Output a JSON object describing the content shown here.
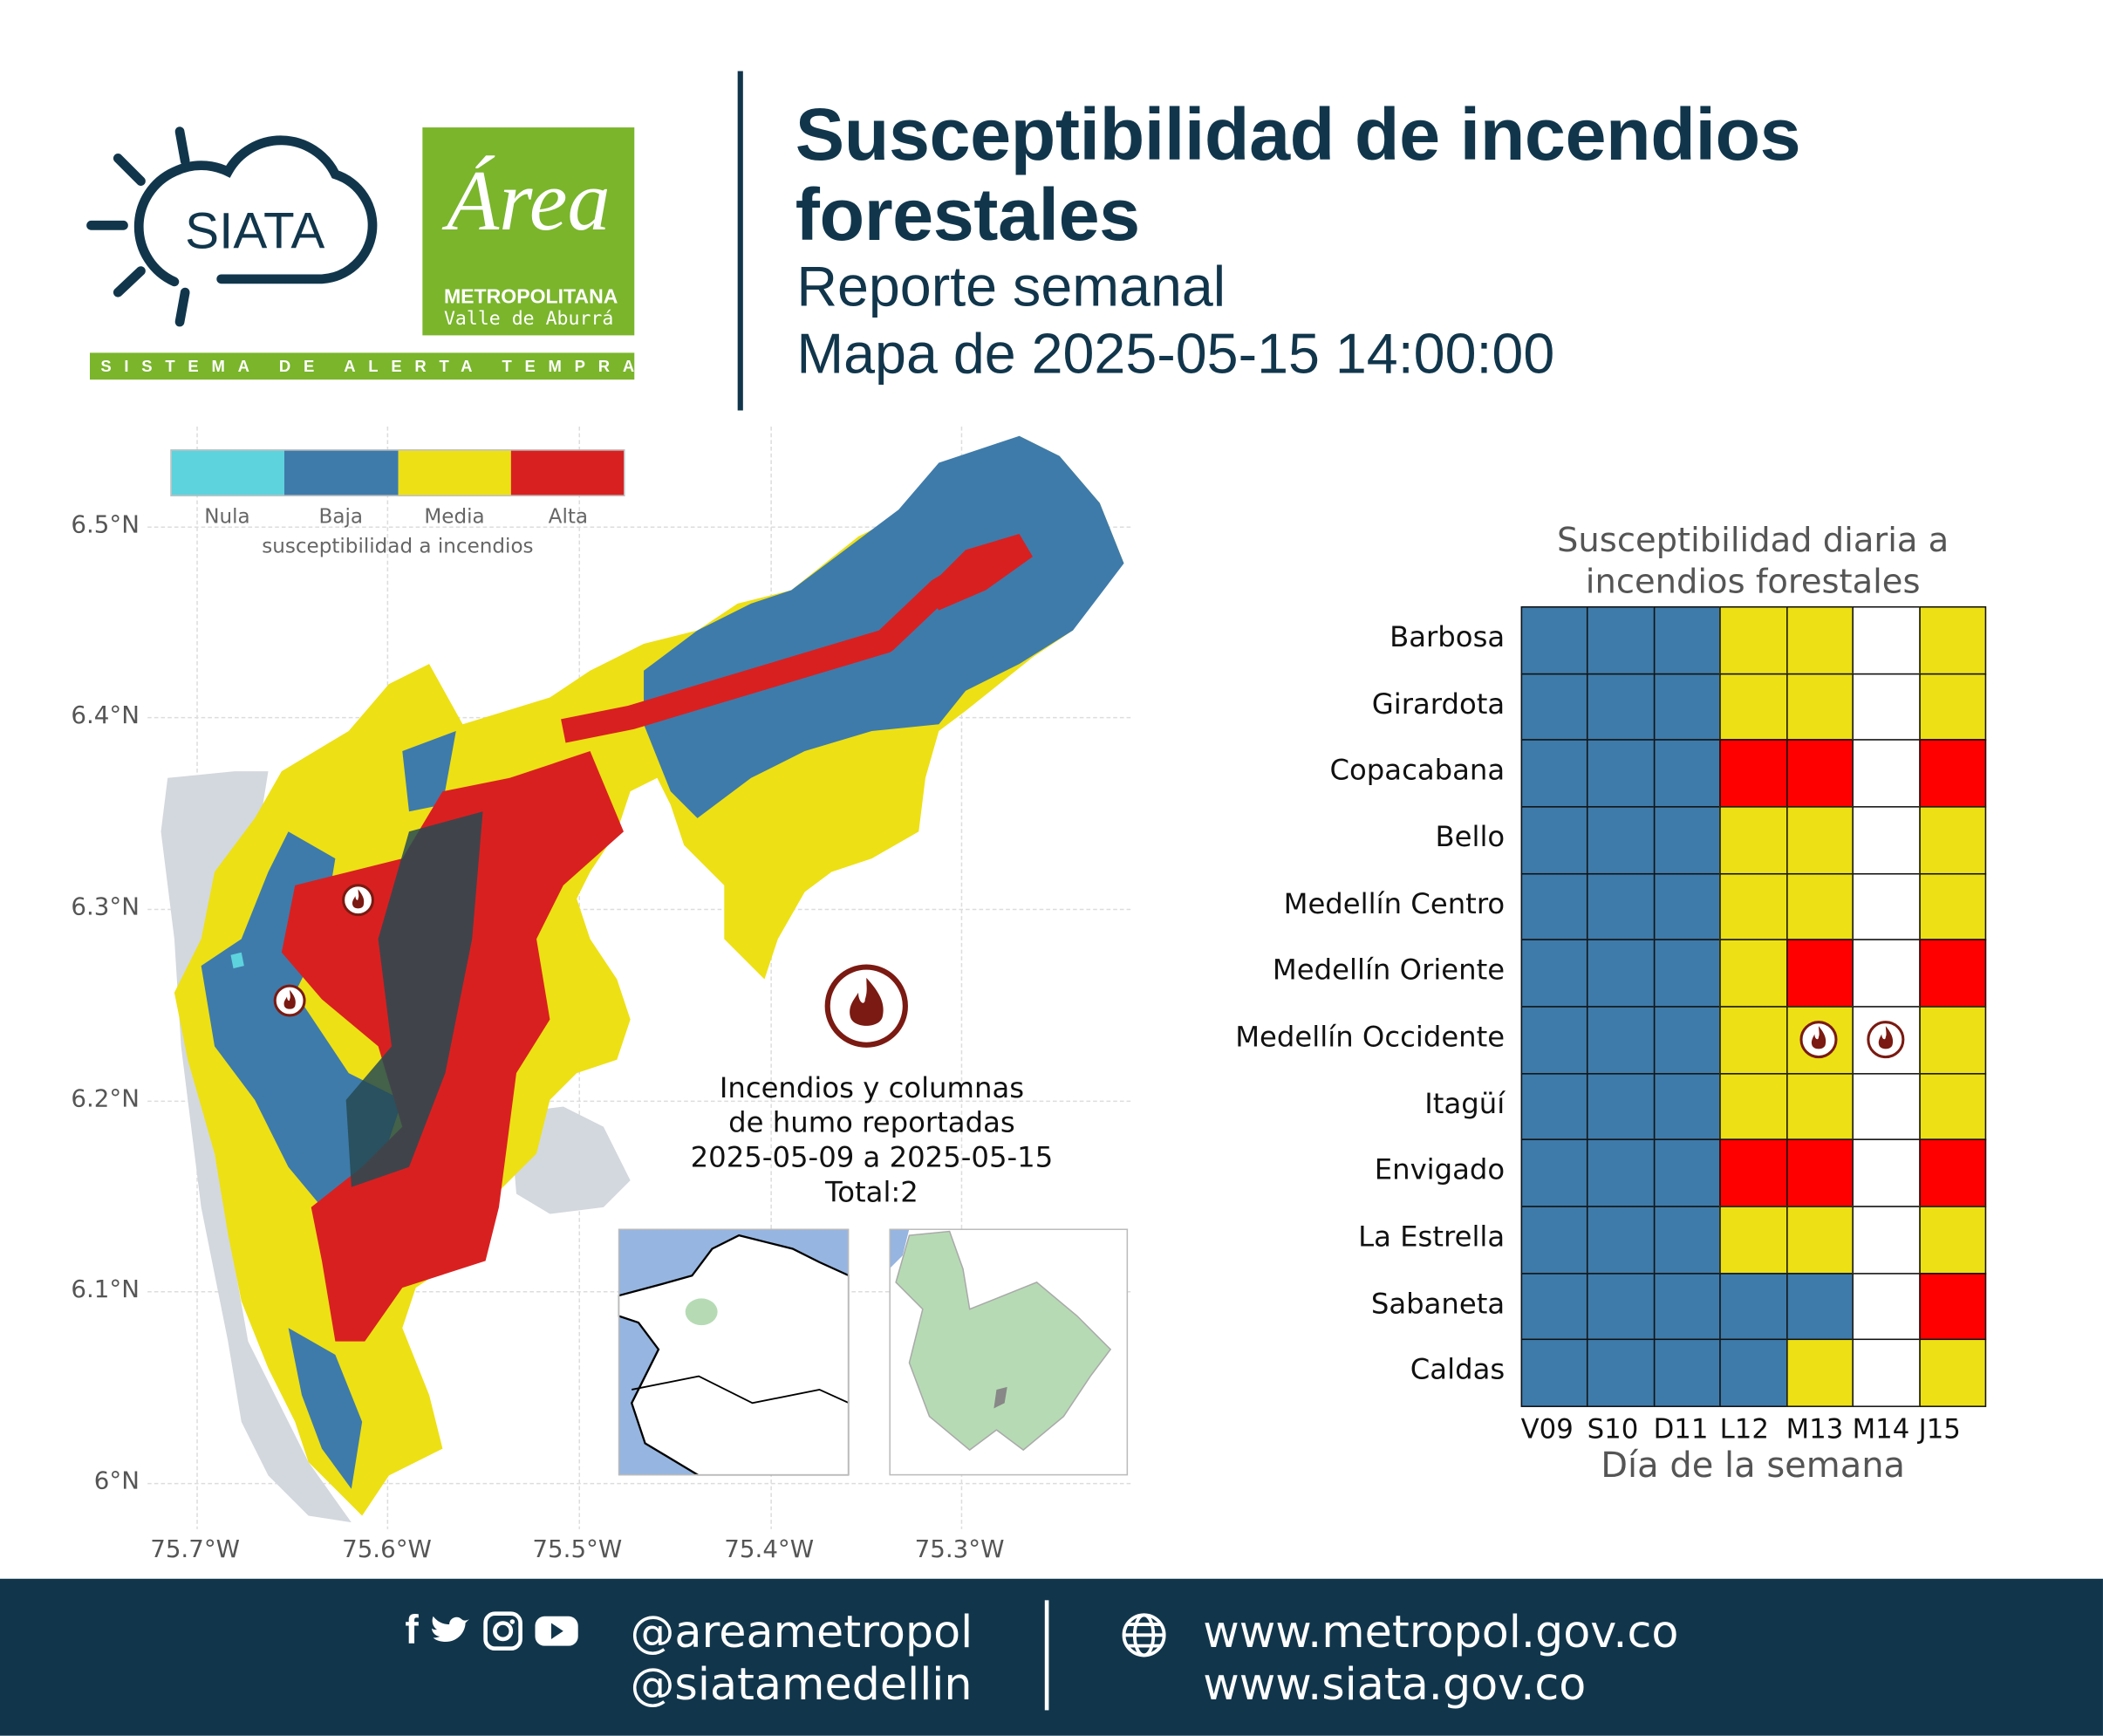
{
  "header": {
    "logo_siata": "SIATA",
    "logo_area_script": "Área",
    "logo_area_line1": "METROPOLITANA",
    "logo_area_line2": "Valle de Aburrá",
    "logo_tagline": "SISTEMA DE ALERTA TEMPRANA",
    "title_line1": "Susceptibilidad de incendios",
    "title_line2": "forestales",
    "subtitle": "Reporte semanal",
    "map_date": "Mapa de 2025-05-15 14:00:00"
  },
  "map": {
    "legend": {
      "categories": [
        "Nula",
        "Baja",
        "Media",
        "Alta"
      ],
      "colors": [
        "#5dd3de",
        "#3e7baa",
        "#ede015",
        "#d92020"
      ],
      "label": "susceptibilidad a incendios"
    },
    "lat_ticks": [
      "6.5°N",
      "6.4°N",
      "6.3°N",
      "6.2°N",
      "6.1°N",
      "6°N"
    ],
    "lon_ticks": [
      "75.7°W",
      "75.6°W",
      "75.5°W",
      "75.4°W",
      "75.3°W"
    ],
    "fires_legend": {
      "icon": "fire-icon",
      "line1": "Incendios y columnas",
      "line2": "de humo reportadas",
      "line3": "2025-05-09 a 2025-05-15",
      "line4": "Total:2"
    },
    "outside_color": "#d3d8de",
    "dense_color": "#264a52"
  },
  "chart_data": {
    "type": "heatmap",
    "title": "Susceptibilidad diaria a incendios forestales",
    "xlabel": "Día de la semana",
    "columns": [
      "V09",
      "S10",
      "D11",
      "L12",
      "M13",
      "M14",
      "J15"
    ],
    "rows": [
      "Barbosa",
      "Girardota",
      "Copacabana",
      "Bello",
      "Medellín Centro",
      "Medellín Oriente",
      "Medellín Occidente",
      "Itagüí",
      "Envigado",
      "La Estrella",
      "Sabaneta",
      "Caldas"
    ],
    "values": [
      [
        "Baja",
        "Baja",
        "Baja",
        "Media",
        "Media",
        null,
        "Media"
      ],
      [
        "Baja",
        "Baja",
        "Baja",
        "Media",
        "Media",
        null,
        "Media"
      ],
      [
        "Baja",
        "Baja",
        "Baja",
        "Alta",
        "Alta",
        null,
        "Alta"
      ],
      [
        "Baja",
        "Baja",
        "Baja",
        "Media",
        "Media",
        null,
        "Media"
      ],
      [
        "Baja",
        "Baja",
        "Baja",
        "Media",
        "Media",
        null,
        "Media"
      ],
      [
        "Baja",
        "Baja",
        "Baja",
        "Media",
        "Alta",
        null,
        "Alta"
      ],
      [
        "Baja",
        "Baja",
        "Baja",
        "Media",
        "Media",
        null,
        "Media"
      ],
      [
        "Baja",
        "Baja",
        "Baja",
        "Media",
        "Media",
        null,
        "Media"
      ],
      [
        "Baja",
        "Baja",
        "Baja",
        "Alta",
        "Alta",
        null,
        "Alta"
      ],
      [
        "Baja",
        "Baja",
        "Baja",
        "Media",
        "Media",
        null,
        "Media"
      ],
      [
        "Baja",
        "Baja",
        "Baja",
        "Baja",
        "Baja",
        null,
        "Alta"
      ],
      [
        "Baja",
        "Baja",
        "Baja",
        "Baja",
        "Media",
        null,
        "Media"
      ]
    ],
    "colors": {
      "Baja": "#3e7baa",
      "Media": "#ede015",
      "Alta": "#ff0000",
      "none": "#ffffff"
    },
    "fires": [
      {
        "row": "Medellín Occidente",
        "column": "M13"
      },
      {
        "row": "Medellín Occidente",
        "column": "M14"
      }
    ]
  },
  "footer": {
    "social_icons": [
      "facebook-icon",
      "twitter-icon",
      "instagram-icon",
      "youtube-icon"
    ],
    "handle1": "@areametropol",
    "handle2": "@siatamedellin",
    "url1": "www.metropol.gov.co",
    "url2": "www.siata.gov.co"
  },
  "brand_colors": {
    "navy": "#11364c",
    "green": "#7ab52b"
  }
}
